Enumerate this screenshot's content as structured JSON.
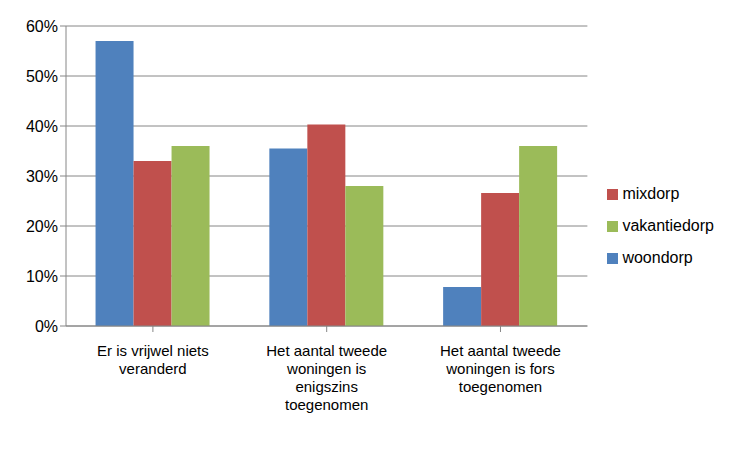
{
  "chart_data": {
    "type": "bar",
    "categories": [
      "Er is vrijwel niets veranderd",
      "Het aantal tweede woningen is enigszins toegenomen",
      "Het aantal tweede woningen is fors toegenomen"
    ],
    "series": [
      {
        "name": "woondorp",
        "color": "#4f81bd",
        "values": [
          57,
          35.5,
          7.8
        ]
      },
      {
        "name": "mixdorp",
        "color": "#c0504d",
        "values": [
          33,
          40.3,
          26.6
        ]
      },
      {
        "name": "vakantiedorp",
        "color": "#9bbb59",
        "values": [
          36,
          28,
          36
        ]
      }
    ],
    "ylim": [
      0,
      60
    ],
    "yticks": [
      {
        "value": 0,
        "label": "0%"
      },
      {
        "value": 10,
        "label": "10%"
      },
      {
        "value": 20,
        "label": "20%"
      },
      {
        "value": 30,
        "label": "30%"
      },
      {
        "value": 40,
        "label": "40%"
      },
      {
        "value": 50,
        "label": "50%"
      },
      {
        "value": 60,
        "label": "60%"
      }
    ],
    "grid": true,
    "legend": "right"
  }
}
